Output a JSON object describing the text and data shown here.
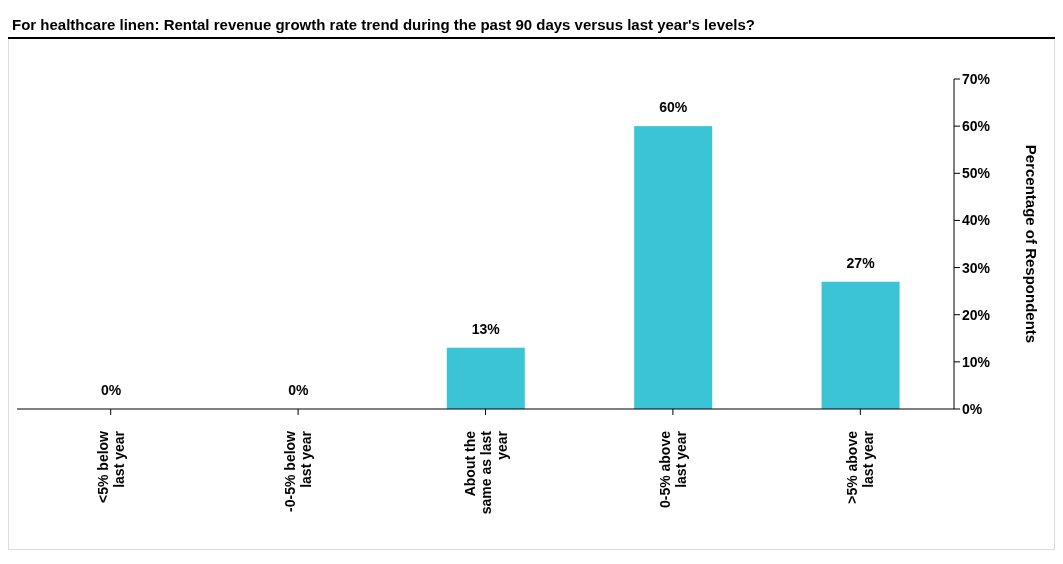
{
  "chart_data": {
    "type": "bar",
    "title": "For healthcare linen: Rental revenue growth rate trend during the past 90 days versus last year's levels?",
    "ylabel": "Percentage of Respondents",
    "categories": [
      "<5% below last year",
      "-0-5% below last year",
      "About the same as last year",
      "0-5% above last year",
      ">5% above last year"
    ],
    "values": [
      0,
      0,
      13,
      60,
      27
    ],
    "value_labels": [
      "0%",
      "0%",
      "13%",
      "60%",
      "27%"
    ],
    "color": "#3bc3d6",
    "ylim": [
      0,
      70
    ],
    "yticks": [
      {
        "value": 0,
        "label": "0%"
      },
      {
        "value": 10,
        "label": "10%"
      },
      {
        "value": 20,
        "label": "20%"
      },
      {
        "value": 30,
        "label": "30%"
      },
      {
        "value": 40,
        "label": "40%"
      },
      {
        "value": 50,
        "label": "50%"
      },
      {
        "value": 60,
        "label": "60%"
      },
      {
        "value": 70,
        "label": "70%"
      }
    ],
    "grid": false,
    "legend": false
  }
}
